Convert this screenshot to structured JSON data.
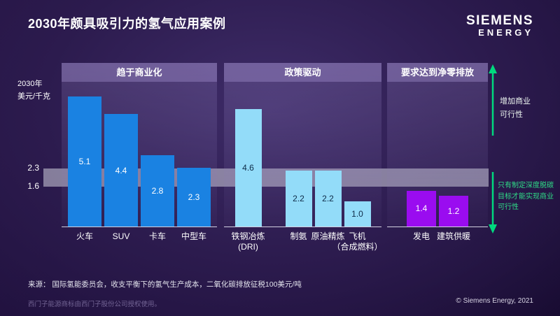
{
  "title": "2030年颇具吸引力的氢气应用案例",
  "logo": {
    "line1": "SIEMENS",
    "line2": "energy"
  },
  "annotations": {
    "up": "增加商业\n可行性",
    "down": "只有制定深度脱碳\n目标才能实现商业\n可行性"
  },
  "footer": {
    "source": "来源： 国际氢能委员会，收支平衡下的氢气生产成本，二氧化碳排放征税100美元/吨",
    "trademark": "西门子能源商标由西门子股份公司授权使用。",
    "copyright": "© Siemens Energy, 2021"
  },
  "colors": {
    "blue": "#1a82e2",
    "cyan": "#93dcf9",
    "violet": "#9a0cf0",
    "green": "#00d97e",
    "band_grey": "#d0d0dc"
  },
  "chart_data": {
    "type": "bar",
    "title": "2030年颇具吸引力的氢气应用案例",
    "ylabel": "2030年\n美元/千克",
    "ylim": [
      0,
      5.6
    ],
    "grid": false,
    "band": {
      "top_value": 2.3,
      "bottom_value": 1.6
    },
    "gridline_labels": [
      "2.3",
      "1.6"
    ],
    "groups": [
      {
        "title": "趋于商业化",
        "bar_color": "#1a82e2",
        "label_color": "#ffffff",
        "bars": [
          {
            "label": "火车",
            "value": 5.1
          },
          {
            "label": "SUV",
            "value": 4.4
          },
          {
            "label": "卡车",
            "value": 2.8
          },
          {
            "label": "中型车",
            "value": 2.3
          }
        ]
      },
      {
        "title": "政策驱动",
        "bar_color": "#93dcf9",
        "label_color": "#0e2a47",
        "bars": [
          {
            "label": "铁钢冶炼\n(DRI)",
            "value": 4.6
          },
          {
            "label": "制氨",
            "value": 2.2
          },
          {
            "label": "原油精炼",
            "value": 2.2
          },
          {
            "label": "飞机\n（合成燃料）",
            "value": 1.0
          }
        ]
      },
      {
        "title": "要求达到净零排放",
        "bar_color": "#9a0cf0",
        "label_color": "#ffffff",
        "bars": [
          {
            "label": "发电",
            "value": 1.4
          },
          {
            "label": "建筑供暖",
            "value": 1.2
          }
        ]
      }
    ]
  }
}
